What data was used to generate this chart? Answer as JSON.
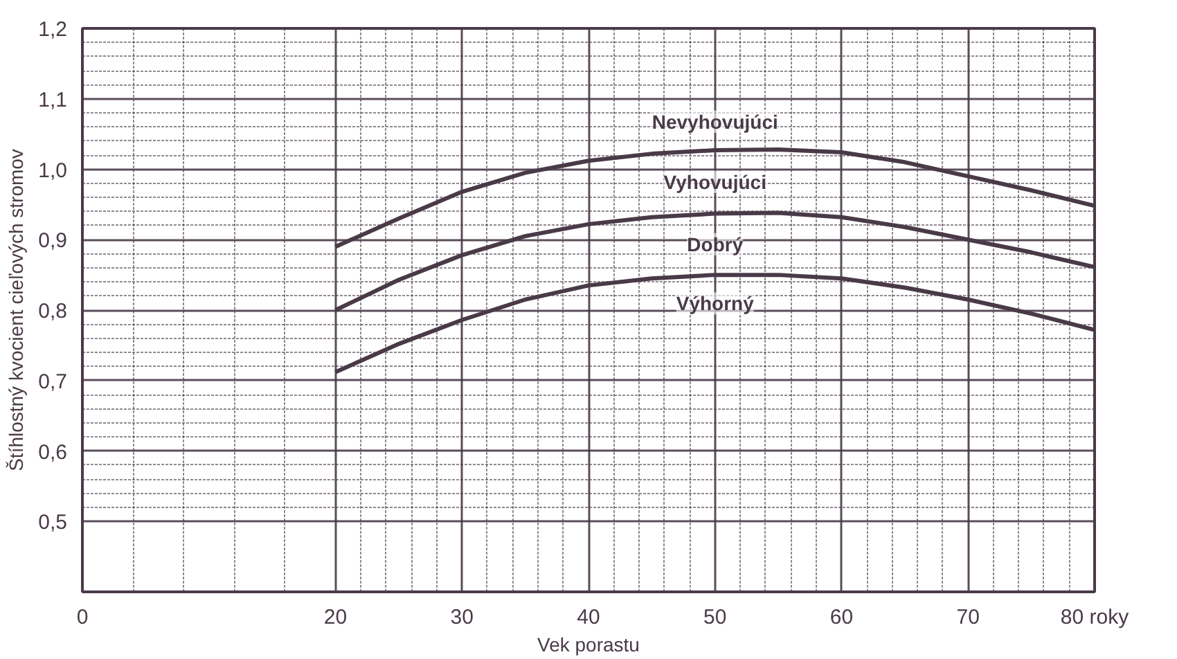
{
  "chart_data": {
    "type": "line",
    "xlabel": "Vek porastu",
    "ylabel": "Štíhlostný kvocient cieľových stromov",
    "x": [
      20,
      25,
      30,
      35,
      40,
      45,
      50,
      55,
      60,
      65,
      70,
      75,
      80
    ],
    "series": [
      {
        "color": "#4a3a48",
        "values": [
          0.89,
          0.93,
          0.968,
          0.995,
          1.012,
          1.022,
          1.027,
          1.028,
          1.024,
          1.01,
          0.99,
          0.97,
          0.948
        ]
      },
      {
        "color": "#4a3a48",
        "values": [
          0.8,
          0.843,
          0.878,
          0.905,
          0.922,
          0.932,
          0.937,
          0.938,
          0.932,
          0.918,
          0.9,
          0.882,
          0.861
        ]
      },
      {
        "color": "#4a3a48",
        "values": [
          0.712,
          0.752,
          0.786,
          0.815,
          0.835,
          0.845,
          0.85,
          0.85,
          0.845,
          0.832,
          0.815,
          0.795,
          0.772
        ]
      }
    ],
    "annotations": [
      "Nevyhovujúci",
      "Vyhovujúci",
      "Dobrý",
      "Výhorný"
    ],
    "xlim": [
      0,
      80
    ],
    "xticks": [
      0,
      20,
      30,
      40,
      50,
      60,
      70,
      {
        "value": 80,
        "label": "80 roky"
      }
    ],
    "ylim": [
      0.4,
      1.2
    ],
    "yticks": [
      {
        "value": 0.5,
        "label": "0,5"
      },
      {
        "value": 0.6,
        "label": "0,6"
      },
      {
        "value": 0.7,
        "label": "0,7"
      },
      {
        "value": 0.8,
        "label": "0,8"
      },
      {
        "value": 0.9,
        "label": "0,9"
      },
      {
        "value": 1.0,
        "label": "1,0"
      },
      {
        "value": 1.1,
        "label": "1,1"
      },
      {
        "value": 1.2,
        "label": "1,2"
      }
    ],
    "grid": true,
    "marker": "none",
    "line_style": "solid"
  }
}
